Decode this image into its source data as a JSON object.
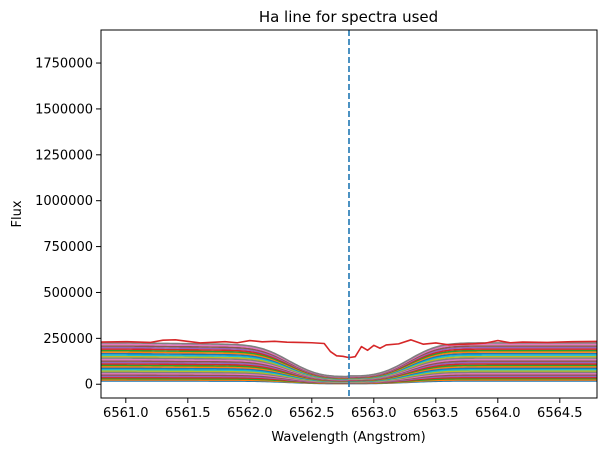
{
  "chart_data": {
    "type": "line",
    "title": "Ha line for spectra used",
    "xlabel": "Wavelength (Angstrom)",
    "ylabel": "Flux",
    "xlim": [
      6560.8,
      6564.8
    ],
    "ylim": [
      -75000,
      1930000
    ],
    "xticks": [
      6561.0,
      6561.5,
      6562.0,
      6562.5,
      6563.0,
      6563.5,
      6564.0,
      6564.5
    ],
    "xtick_labels": [
      "6561.0",
      "6561.5",
      "6562.0",
      "6562.5",
      "6563.0",
      "6563.5",
      "6564.0",
      "6564.5"
    ],
    "yticks": [
      0,
      250000,
      500000,
      750000,
      1000000,
      1250000,
      1500000,
      1750000
    ],
    "ytick_labels": [
      "0",
      "250000",
      "500000",
      "750000",
      "1000000",
      "1250000",
      "1500000",
      "1750000"
    ],
    "reference_line": {
      "x": 6562.8,
      "style": "dashed",
      "color": "#1f77b4"
    },
    "line_center": 6562.8,
    "colors": [
      "#1f77b4",
      "#ff7f0e",
      "#2ca02c",
      "#d62728",
      "#9467bd",
      "#8c564b",
      "#e377c2",
      "#7f7f7f",
      "#bcbd22",
      "#17becf"
    ],
    "highlight_series": {
      "color": "#d62728",
      "x": [
        6560.8,
        6561.0,
        6561.2,
        6561.3,
        6561.4,
        6561.6,
        6561.8,
        6561.9,
        6562.0,
        6562.1,
        6562.2,
        6562.3,
        6562.4,
        6562.5,
        6562.6,
        6562.65,
        6562.7,
        6562.75,
        6562.8,
        6562.85,
        6562.9,
        6562.95,
        6563.0,
        6563.05,
        6563.1,
        6563.2,
        6563.3,
        6563.4,
        6563.5,
        6563.6,
        6563.8,
        6563.9,
        6564.0,
        6564.1,
        6564.2,
        6564.4,
        6564.6,
        6564.8
      ],
      "y": [
        230000,
        232000,
        228000,
        240000,
        242000,
        225000,
        232000,
        226000,
        238000,
        231000,
        234000,
        229000,
        228000,
        226000,
        222000,
        178000,
        155000,
        152000,
        145000,
        150000,
        205000,
        185000,
        212000,
        196000,
        214000,
        220000,
        242000,
        218000,
        225000,
        215000,
        220000,
        224000,
        238000,
        226000,
        230000,
        228000,
        232000,
        233000
      ]
    },
    "series_summary": {
      "count": 28,
      "continuum_min": 18000,
      "continuum_max": 225000,
      "core_depth_fraction": 0.2,
      "core_width_angstrom": 0.55
    }
  }
}
